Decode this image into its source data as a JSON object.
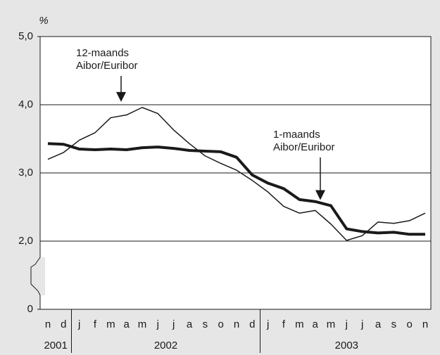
{
  "chart_data": {
    "type": "line",
    "y_unit": "%",
    "categories": [
      "n",
      "d",
      "j",
      "f",
      "m",
      "a",
      "m",
      "j",
      "j",
      "a",
      "s",
      "o",
      "n",
      "d",
      "j",
      "f",
      "m",
      "a",
      "m",
      "j",
      "j",
      "a",
      "s",
      "o",
      "n"
    ],
    "years": [
      "2001",
      "2002",
      "2003"
    ],
    "series": [
      {
        "label": [
          "12-maands",
          "Aibor/Euribor"
        ],
        "color": "#1a1a1a",
        "width": 1.5,
        "values": [
          3.2,
          3.3,
          3.48,
          3.59,
          3.81,
          3.85,
          3.96,
          3.87,
          3.63,
          3.43,
          3.25,
          3.14,
          3.04,
          2.89,
          2.72,
          2.51,
          2.41,
          2.45,
          2.25,
          2.01,
          2.08,
          2.28,
          2.26,
          2.3,
          2.41
        ]
      },
      {
        "label": [
          "1-maands",
          "Aibor/Euribor"
        ],
        "color": "#1a1a1a",
        "width": 4,
        "values": [
          3.43,
          3.42,
          3.35,
          3.34,
          3.35,
          3.34,
          3.37,
          3.38,
          3.36,
          3.33,
          3.32,
          3.31,
          3.23,
          2.97,
          2.85,
          2.77,
          2.61,
          2.58,
          2.52,
          2.18,
          2.14,
          2.12,
          2.13,
          2.1,
          2.1
        ]
      }
    ],
    "ylim": [
      0,
      5
    ],
    "yticks": [
      0,
      {
        "value": 2,
        "label": "2,0"
      },
      {
        "value": 3,
        "label": "3,0"
      },
      {
        "value": 4,
        "label": "4,0"
      },
      {
        "value": 5,
        "label": "5,0"
      }
    ],
    "broken_axis": true,
    "grid": true
  }
}
